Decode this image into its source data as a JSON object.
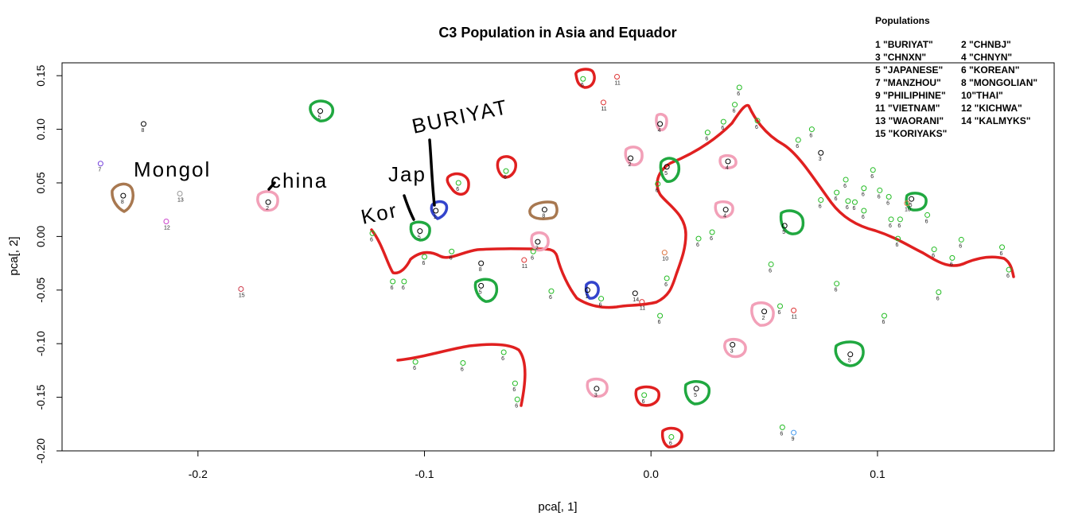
{
  "chart_data": {
    "type": "scatter",
    "title": "C3 Population in Asia and Equador",
    "xlabel": "pca[, 1]",
    "ylabel": "pca[, 2]",
    "xlim": [
      -0.26,
      0.178
    ],
    "ylim": [
      -0.2,
      0.162
    ],
    "xticks": [
      -0.2,
      -0.1,
      0.0,
      0.1
    ],
    "xtick_labels": [
      "-0.2",
      "-0.1",
      "0.0",
      "0.1"
    ],
    "yticks": [
      -0.2,
      -0.15,
      -0.1,
      -0.05,
      0.0,
      0.05,
      0.1,
      0.15
    ],
    "ytick_labels": [
      "-0.20",
      "-0.15",
      "-0.10",
      "-0.05",
      "0.00",
      "0.05",
      "0.10",
      "0.15"
    ],
    "grid": false,
    "legend_title": "Populations",
    "legend_entries": [
      "1 \"BURIYAT\"",
      "2    \"CHNBJ\"",
      "3  \"CHNXN\"",
      "4    \"CHNYN\"",
      "5  \"JAPANESE\"",
      "6 \"KOREAN\"",
      "7  \"MANZHOU\"",
      "8  \"MONGOLIAN\"",
      " 9 \"PHILIPHINE\"",
      "10\"THAI\"",
      "11 \"VIETNAM\"",
      "12 \"KICHWA\"",
      "13 \"WAORANI\"",
      "14 \"KALMYKS\"",
      "15 \"KORIYAKS\"",
      ""
    ],
    "group_colors": {
      "1": "#000000",
      "2": "#000000",
      "3": "#000000",
      "4": "#000000",
      "5": "#000000",
      "6": "#22bb22",
      "7": "#7744dd",
      "8": "#000000",
      "9": "#4499ee",
      "10": "#dd7744",
      "11": "#dd3333",
      "12": "#cc44cc",
      "13": "#999999",
      "14": "#000000",
      "15": "#cc3344"
    },
    "points": [
      {
        "x": -0.243,
        "y": 0.068,
        "g": 7
      },
      {
        "x": -0.224,
        "y": 0.105,
        "g": 8
      },
      {
        "x": -0.233,
        "y": 0.038,
        "g": 8
      },
      {
        "x": -0.208,
        "y": 0.04,
        "g": 13
      },
      {
        "x": -0.214,
        "y": 0.014,
        "g": 12
      },
      {
        "x": -0.181,
        "y": -0.049,
        "g": 15
      },
      {
        "x": -0.169,
        "y": 0.032,
        "g": 2
      },
      {
        "x": -0.146,
        "y": 0.117,
        "g": 5
      },
      {
        "x": -0.123,
        "y": 0.003,
        "g": 6
      },
      {
        "x": -0.114,
        "y": -0.042,
        "g": 6
      },
      {
        "x": -0.109,
        "y": -0.042,
        "g": 6
      },
      {
        "x": -0.102,
        "y": 0.005,
        "g": 5
      },
      {
        "x": -0.1,
        "y": -0.019,
        "g": 6
      },
      {
        "x": -0.095,
        "y": 0.024,
        "g": 1
      },
      {
        "x": -0.085,
        "y": 0.05,
        "g": 6
      },
      {
        "x": -0.088,
        "y": -0.014,
        "g": 6
      },
      {
        "x": -0.075,
        "y": -0.025,
        "g": 8
      },
      {
        "x": -0.075,
        "y": -0.046,
        "g": 5
      },
      {
        "x": -0.064,
        "y": 0.061,
        "g": 6
      },
      {
        "x": -0.056,
        "y": -0.022,
        "g": 11
      },
      {
        "x": -0.052,
        "y": -0.014,
        "g": 6
      },
      {
        "x": -0.05,
        "y": -0.005,
        "g": 2
      },
      {
        "x": -0.047,
        "y": 0.025,
        "g": 8
      },
      {
        "x": -0.044,
        "y": -0.051,
        "g": 6
      },
      {
        "x": -0.104,
        "y": -0.117,
        "g": 6
      },
      {
        "x": -0.083,
        "y": -0.118,
        "g": 6
      },
      {
        "x": -0.065,
        "y": -0.108,
        "g": 6
      },
      {
        "x": -0.06,
        "y": -0.137,
        "g": 6
      },
      {
        "x": -0.059,
        "y": -0.152,
        "g": 6
      },
      {
        "x": -0.03,
        "y": 0.147,
        "g": 6
      },
      {
        "x": -0.028,
        "y": -0.05,
        "g": 1
      },
      {
        "x": -0.022,
        "y": -0.058,
        "g": 6
      },
      {
        "x": -0.021,
        "y": 0.125,
        "g": 11
      },
      {
        "x": -0.015,
        "y": 0.149,
        "g": 11
      },
      {
        "x": -0.024,
        "y": -0.142,
        "g": 3
      },
      {
        "x": -0.009,
        "y": 0.073,
        "g": 2
      },
      {
        "x": -0.007,
        "y": -0.053,
        "g": 14
      },
      {
        "x": -0.004,
        "y": -0.061,
        "g": 11
      },
      {
        "x": -0.003,
        "y": -0.148,
        "g": 6
      },
      {
        "x": 0.003,
        "y": 0.049,
        "g": 6
      },
      {
        "x": 0.004,
        "y": -0.074,
        "g": 6
      },
      {
        "x": 0.004,
        "y": 0.105,
        "g": 4
      },
      {
        "x": 0.006,
        "y": -0.015,
        "g": 10
      },
      {
        "x": 0.007,
        "y": -0.039,
        "g": 6
      },
      {
        "x": 0.007,
        "y": 0.065,
        "g": 5
      },
      {
        "x": 0.009,
        "y": -0.187,
        "g": 6
      },
      {
        "x": 0.02,
        "y": -0.142,
        "g": 5
      },
      {
        "x": 0.021,
        "y": -0.002,
        "g": 6
      },
      {
        "x": 0.025,
        "y": 0.097,
        "g": 6
      },
      {
        "x": 0.027,
        "y": 0.004,
        "g": 6
      },
      {
        "x": 0.032,
        "y": 0.107,
        "g": 6
      },
      {
        "x": 0.033,
        "y": 0.025,
        "g": 4
      },
      {
        "x": 0.034,
        "y": 0.07,
        "g": 4
      },
      {
        "x": 0.036,
        "y": -0.101,
        "g": 3
      },
      {
        "x": 0.037,
        "y": 0.123,
        "g": 6
      },
      {
        "x": 0.039,
        "y": 0.139,
        "g": 6
      },
      {
        "x": 0.047,
        "y": 0.108,
        "g": 6
      },
      {
        "x": 0.05,
        "y": -0.07,
        "g": 2
      },
      {
        "x": 0.053,
        "y": -0.026,
        "g": 6
      },
      {
        "x": 0.057,
        "y": -0.065,
        "g": 6
      },
      {
        "x": 0.058,
        "y": -0.178,
        "g": 6
      },
      {
        "x": 0.059,
        "y": 0.01,
        "g": 5
      },
      {
        "x": 0.063,
        "y": -0.069,
        "g": 11
      },
      {
        "x": 0.063,
        "y": -0.183,
        "g": 9
      },
      {
        "x": 0.065,
        "y": 0.09,
        "g": 6
      },
      {
        "x": 0.071,
        "y": 0.1,
        "g": 6
      },
      {
        "x": 0.075,
        "y": 0.078,
        "g": 3
      },
      {
        "x": 0.075,
        "y": 0.034,
        "g": 6
      },
      {
        "x": 0.082,
        "y": -0.044,
        "g": 6
      },
      {
        "x": 0.082,
        "y": 0.041,
        "g": 6
      },
      {
        "x": 0.086,
        "y": 0.053,
        "g": 6
      },
      {
        "x": 0.087,
        "y": 0.033,
        "g": 6
      },
      {
        "x": 0.088,
        "y": -0.11,
        "g": 5
      },
      {
        "x": 0.09,
        "y": 0.032,
        "g": 6
      },
      {
        "x": 0.094,
        "y": 0.045,
        "g": 6
      },
      {
        "x": 0.094,
        "y": 0.024,
        "g": 6
      },
      {
        "x": 0.098,
        "y": 0.062,
        "g": 6
      },
      {
        "x": 0.101,
        "y": 0.043,
        "g": 6
      },
      {
        "x": 0.103,
        "y": -0.074,
        "g": 6
      },
      {
        "x": 0.105,
        "y": 0.037,
        "g": 6
      },
      {
        "x": 0.106,
        "y": 0.016,
        "g": 6
      },
      {
        "x": 0.109,
        "y": -0.002,
        "g": 6
      },
      {
        "x": 0.11,
        "y": 0.016,
        "g": 6
      },
      {
        "x": 0.113,
        "y": 0.031,
        "g": 10
      },
      {
        "x": 0.115,
        "y": 0.035,
        "g": 5
      },
      {
        "x": 0.122,
        "y": 0.02,
        "g": 6
      },
      {
        "x": 0.125,
        "y": -0.012,
        "g": 6
      },
      {
        "x": 0.127,
        "y": -0.052,
        "g": 6
      },
      {
        "x": 0.133,
        "y": -0.02,
        "g": 6
      },
      {
        "x": 0.137,
        "y": -0.003,
        "g": 6
      },
      {
        "x": 0.155,
        "y": -0.01,
        "g": 6
      },
      {
        "x": 0.158,
        "y": -0.031,
        "g": 6
      }
    ]
  },
  "annotations": {
    "mongol": "Mongol",
    "china": "china",
    "jap": "Jap",
    "kor": "Kor",
    "buriyat": "BURIYAT",
    "colors": {
      "red": "#e02020",
      "green": "#20a840",
      "pink": "#f2a0b8",
      "brown": "#a87850",
      "blue": "#3344cc",
      "ink": "#000000"
    }
  }
}
